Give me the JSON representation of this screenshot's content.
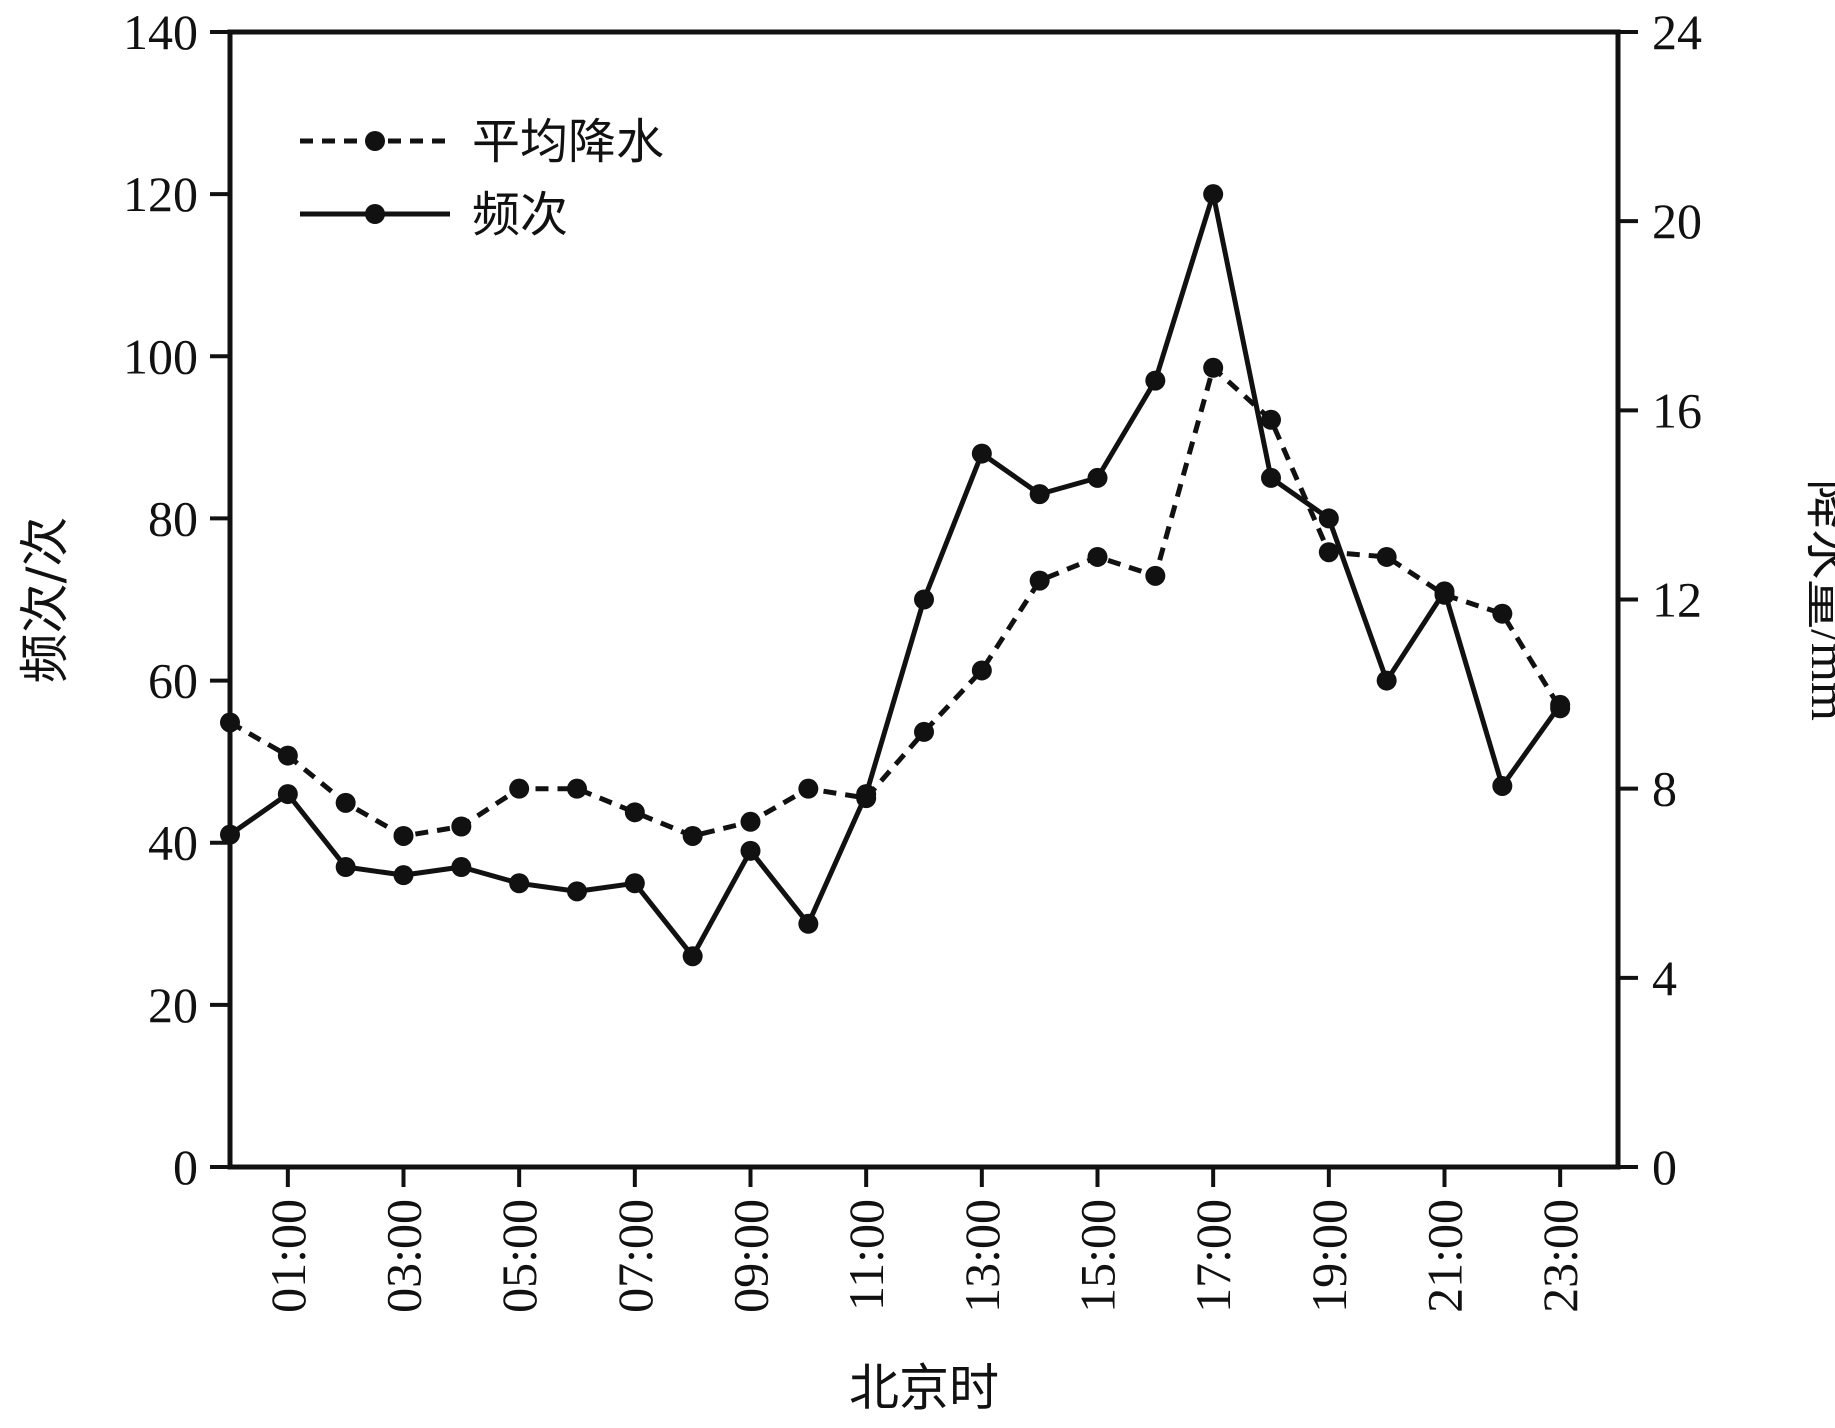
{
  "chart_data": {
    "type": "line",
    "xlabel": "北京时",
    "ylabel_left": "频次/次",
    "ylabel_right_cn": "降水量",
    "ylabel_right_unit": "/mm",
    "x_hours": [
      0,
      1,
      2,
      3,
      4,
      5,
      6,
      7,
      8,
      9,
      10,
      11,
      12,
      13,
      14,
      15,
      16,
      17,
      18,
      19,
      20,
      21,
      22,
      23
    ],
    "x_tick_labels": [
      "01:00",
      "03:00",
      "05:00",
      "07:00",
      "09:00",
      "11:00",
      "13:00",
      "15:00",
      "17:00",
      "19:00",
      "21:00",
      "23:00"
    ],
    "x_tick_hours": [
      1,
      3,
      5,
      7,
      9,
      11,
      13,
      15,
      17,
      19,
      21,
      23
    ],
    "xlim": [
      0,
      24
    ],
    "y_left": {
      "lim": [
        0,
        140
      ],
      "ticks": [
        0,
        20,
        40,
        60,
        80,
        100,
        120,
        140
      ]
    },
    "y_right": {
      "lim": [
        0,
        24
      ],
      "ticks": [
        0,
        4,
        8,
        12,
        16,
        20,
        24
      ]
    },
    "series": [
      {
        "name": "平均降水",
        "axis": "right",
        "style": "dashed",
        "values": [
          9.4,
          8.7,
          7.7,
          7.0,
          7.2,
          8.0,
          8.0,
          7.5,
          7.0,
          7.3,
          8.0,
          7.8,
          9.2,
          10.5,
          12.4,
          12.9,
          12.5,
          16.9,
          15.8,
          13.0,
          12.9,
          12.1,
          11.7,
          9.7
        ]
      },
      {
        "name": "频次",
        "axis": "left",
        "style": "solid",
        "values": [
          41,
          46,
          37,
          36,
          37,
          35,
          34,
          35,
          26,
          39,
          30,
          46,
          70,
          88,
          83,
          85,
          97,
          120,
          85,
          80,
          60,
          71,
          47,
          57
        ]
      }
    ],
    "legend_position": "top-left",
    "grid": false,
    "color": "#111111"
  }
}
